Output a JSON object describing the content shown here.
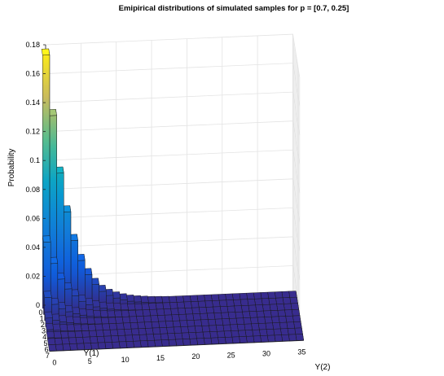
{
  "chart_data": {
    "type": "bar3",
    "title": "Emipirical distributions of simulated samples for p = [0.7, 0.25]",
    "xlabel": "Y(1)",
    "ylabel": "Y(2)",
    "zlabel": "Probability",
    "y1_ticks": [
      "0",
      "1",
      "2",
      "3",
      "4",
      "5",
      "6",
      "7"
    ],
    "y2_ticks": [
      "0",
      "5",
      "10",
      "15",
      "20",
      "25",
      "30",
      "35"
    ],
    "z_ticks": [
      "0",
      "0.02",
      "0.04",
      "0.06",
      "0.08",
      "0.1",
      "0.12",
      "0.14",
      "0.16",
      "0.18"
    ],
    "y1_range": [
      0,
      7
    ],
    "y2_range": [
      0,
      35
    ],
    "zlim": [
      0,
      0.18
    ],
    "grid": true,
    "colormap": "parula",
    "series": [
      {
        "y1": 0,
        "values": [
          0.175,
          0.133,
          0.093,
          0.066,
          0.046,
          0.032,
          0.022,
          0.015,
          0.01,
          0.007,
          0.005,
          0.0035,
          0.0024,
          0.0017,
          0.0012,
          0.0008,
          0.0006,
          0.0004,
          0.0003,
          0.0002,
          0.00015,
          0.0001,
          8e-05,
          5e-05,
          4e-05,
          3e-05,
          2e-05,
          1e-05,
          1e-05,
          1e-05,
          0,
          0,
          0,
          0,
          0,
          0
        ]
      },
      {
        "y1": 1,
        "values": [
          0.05,
          0.035,
          0.024,
          0.017,
          0.012,
          0.008,
          0.0055,
          0.0038,
          0.0026,
          0.0018,
          0.0013,
          0.0009,
          0.0006,
          0.0004,
          0.0003,
          0.0002,
          0.00015,
          0.0001,
          7e-05,
          5e-05,
          3e-05,
          2e-05,
          2e-05,
          1e-05,
          1e-05,
          0,
          0,
          0,
          0,
          0,
          0,
          0,
          0,
          0,
          0,
          0
        ]
      },
      {
        "y1": 2,
        "values": [
          0.016,
          0.011,
          0.0078,
          0.0055,
          0.0039,
          0.0027,
          0.0019,
          0.0013,
          0.0009,
          0.0006,
          0.0004,
          0.0003,
          0.0002,
          0.00014,
          0.0001,
          7e-05,
          5e-05,
          3e-05,
          2e-05,
          1e-05,
          1e-05,
          0,
          0,
          0,
          0,
          0,
          0,
          0,
          0,
          0,
          0,
          0,
          0,
          0,
          0,
          0
        ]
      },
      {
        "y1": 3,
        "values": [
          0.006,
          0.0042,
          0.003,
          0.0021,
          0.0015,
          0.001,
          0.0007,
          0.0005,
          0.00035,
          0.00025,
          0.00017,
          0.00012,
          8e-05,
          6e-05,
          4e-05,
          3e-05,
          2e-05,
          1e-05,
          1e-05,
          0,
          0,
          0,
          0,
          0,
          0,
          0,
          0,
          0,
          0,
          0,
          0,
          0,
          0,
          0,
          0,
          0
        ]
      },
      {
        "y1": 4,
        "values": [
          0.0022,
          0.0016,
          0.0011,
          0.0008,
          0.00055,
          0.0004,
          0.00028,
          0.0002,
          0.00014,
          0.0001,
          7e-05,
          5e-05,
          3e-05,
          2e-05,
          2e-05,
          1e-05,
          1e-05,
          0,
          0,
          0,
          0,
          0,
          0,
          0,
          0,
          0,
          0,
          0,
          0,
          0,
          0,
          0,
          0,
          0,
          0,
          0
        ]
      },
      {
        "y1": 5,
        "values": [
          0.0009,
          0.0006,
          0.00045,
          0.0003,
          0.00022,
          0.00015,
          0.0001,
          7e-05,
          5e-05,
          4e-05,
          3e-05,
          2e-05,
          1e-05,
          1e-05,
          0,
          0,
          0,
          0,
          0,
          0,
          0,
          0,
          0,
          0,
          0,
          0,
          0,
          0,
          0,
          0,
          0,
          0,
          0,
          0,
          0,
          0
        ]
      },
      {
        "y1": 6,
        "values": [
          0.00035,
          0.00025,
          0.00018,
          0.00012,
          9e-05,
          6e-05,
          4e-05,
          3e-05,
          2e-05,
          1e-05,
          1e-05,
          0,
          0,
          0,
          0,
          0,
          0,
          0,
          0,
          0,
          0,
          0,
          0,
          0,
          0,
          0,
          0,
          0,
          0,
          0,
          0,
          0,
          0,
          0,
          0,
          0
        ]
      },
      {
        "y1": 7,
        "values": [
          0.00015,
          0.0001,
          7e-05,
          5e-05,
          3e-05,
          2e-05,
          2e-05,
          1e-05,
          1e-05,
          0,
          0,
          0,
          0,
          0,
          0,
          0,
          0,
          0,
          0,
          0,
          0,
          0,
          0,
          0,
          0,
          0,
          0,
          0,
          0,
          0,
          0,
          0,
          0,
          0,
          0,
          0
        ]
      }
    ]
  }
}
